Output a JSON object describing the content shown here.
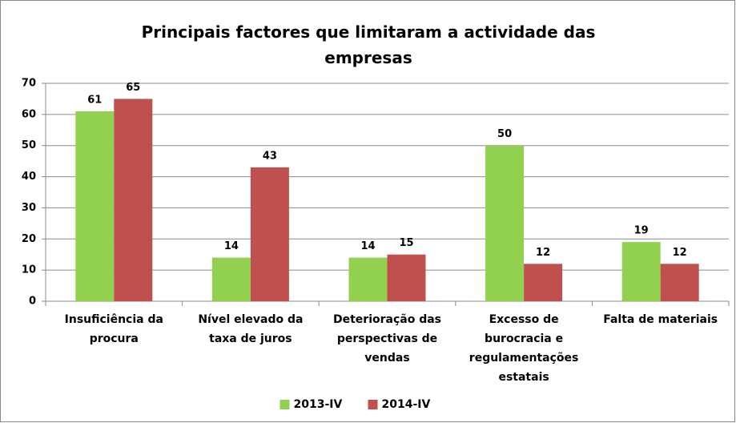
{
  "chart_data": {
    "type": "bar",
    "title": "Principais factores que limitaram a actividade das empresas",
    "categories": [
      "Insuficiência da procura",
      "Nível elevado da taxa de juros",
      "Deterioração das perspectivas de vendas",
      "Excesso de burocracia e regulamentações estatais",
      "Falta de materiais"
    ],
    "series": [
      {
        "name": "2013-IV",
        "color": "#92d050",
        "values": [
          61,
          14,
          14,
          50,
          19
        ]
      },
      {
        "name": "2014-IV",
        "color": "#c0504d",
        "values": [
          65,
          43,
          15,
          12,
          12
        ]
      }
    ],
    "ylim": [
      0,
      70
    ],
    "yticks": [
      0,
      10,
      20,
      30,
      40,
      50,
      60,
      70
    ],
    "grid": true,
    "legend": "bottom"
  }
}
